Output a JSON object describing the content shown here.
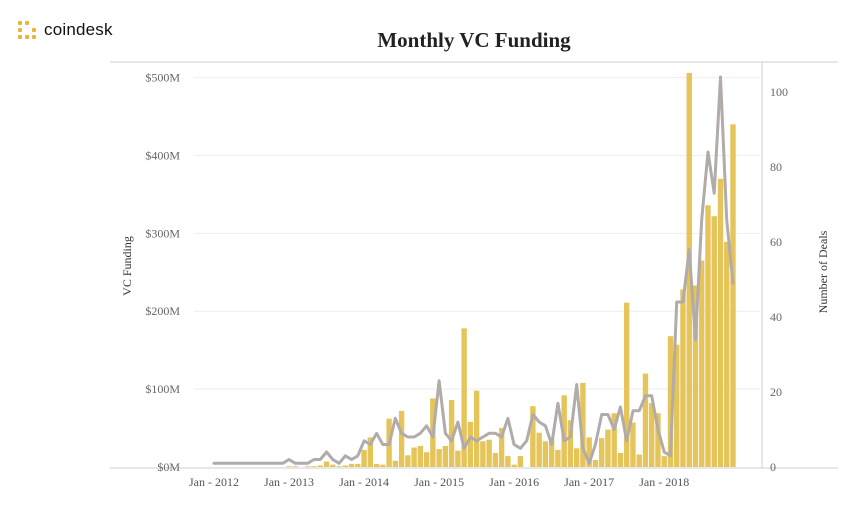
{
  "brand": {
    "name": "coindesk",
    "accent": "#e8b53a"
  },
  "chart_data": {
    "type": "bar+line",
    "title": "Monthly VC Funding",
    "ylabel": "VC Funding",
    "y2label": "Number of Deals",
    "ylim": [
      0,
      520
    ],
    "y2lim": [
      0,
      108
    ],
    "yticks": [
      0,
      100,
      200,
      300,
      400,
      500
    ],
    "ytick_labels": [
      "$0M",
      "$100M",
      "$200M",
      "$300M",
      "$400M",
      "$500M"
    ],
    "y2ticks": [
      0,
      20,
      40,
      60,
      80,
      100
    ],
    "y2tick_labels": [
      "0",
      "20",
      "40",
      "60",
      "80",
      "100"
    ],
    "xtick_labels": [
      "Jan - 2012",
      "Jan - 2013",
      "Jan - 2014",
      "Jan - 2015",
      "Jan - 2016",
      "Jan - 2017",
      "Jan - 2018"
    ],
    "bar_color": "#e5c45a",
    "line_color": "#b1abaa",
    "grid": true,
    "legend": "none",
    "x": [
      "2012-01",
      "2012-02",
      "2012-03",
      "2012-04",
      "2012-05",
      "2012-06",
      "2012-07",
      "2012-08",
      "2012-09",
      "2012-10",
      "2012-11",
      "2012-12",
      "2013-01",
      "2013-02",
      "2013-03",
      "2013-04",
      "2013-05",
      "2013-06",
      "2013-07",
      "2013-08",
      "2013-09",
      "2013-10",
      "2013-11",
      "2013-12",
      "2014-01",
      "2014-02",
      "2014-03",
      "2014-04",
      "2014-05",
      "2014-06",
      "2014-07",
      "2014-08",
      "2014-09",
      "2014-10",
      "2014-11",
      "2014-12",
      "2015-01",
      "2015-02",
      "2015-03",
      "2015-04",
      "2015-05",
      "2015-06",
      "2015-07",
      "2015-08",
      "2015-09",
      "2015-10",
      "2015-11",
      "2015-12",
      "2016-01",
      "2016-02",
      "2016-03",
      "2016-04",
      "2016-05",
      "2016-06",
      "2016-07",
      "2016-08",
      "2016-09",
      "2016-10",
      "2016-11",
      "2016-12",
      "2017-01",
      "2017-02",
      "2017-03",
      "2017-04",
      "2017-05",
      "2017-06",
      "2017-07",
      "2017-08",
      "2017-09",
      "2017-10",
      "2017-11",
      "2017-12",
      "2018-01",
      "2018-02",
      "2018-03",
      "2018-04",
      "2018-05",
      "2018-06",
      "2018-07",
      "2018-08",
      "2018-09",
      "2018-10",
      "2018-11",
      "2018-12"
    ],
    "series": [
      {
        "kind": "bar",
        "axis": "left",
        "values": [
          0,
          0,
          0,
          0,
          0,
          0,
          0,
          0,
          0,
          0,
          0,
          0,
          1,
          1,
          0,
          1,
          1,
          2,
          7,
          3,
          1,
          2,
          4,
          4,
          22,
          38,
          4,
          3,
          62,
          8,
          72,
          15,
          25,
          27,
          19,
          88,
          23,
          27,
          86,
          21,
          178,
          58,
          98,
          33,
          35,
          18,
          50,
          14,
          3,
          14,
          0,
          78,
          44,
          33,
          36,
          22,
          92,
          60,
          24,
          108,
          38,
          9,
          37,
          48,
          69,
          18,
          211,
          57,
          16,
          120,
          82,
          69,
          14,
          168,
          157,
          228,
          506,
          233,
          265,
          336,
          322,
          370,
          289,
          440
        ]
      },
      {
        "kind": "line",
        "axis": "right",
        "values": [
          1,
          1,
          1,
          1,
          1,
          1,
          1,
          1,
          1,
          1,
          1,
          1,
          2,
          1,
          1,
          1,
          2,
          2,
          4,
          2,
          1,
          3,
          2,
          3,
          7,
          6,
          9,
          6,
          6,
          13,
          9,
          8,
          8,
          9,
          11,
          8,
          23,
          9,
          7,
          12,
          5,
          8,
          7,
          8,
          9,
          9,
          8,
          13,
          6,
          5,
          7,
          14,
          12,
          11,
          6,
          17,
          7,
          8,
          22,
          5,
          1,
          6,
          14,
          14,
          10,
          16,
          7,
          15,
          15,
          19,
          19,
          10,
          4,
          3,
          44,
          44,
          58,
          34,
          66,
          84,
          73,
          104,
          66,
          49
        ]
      }
    ]
  }
}
